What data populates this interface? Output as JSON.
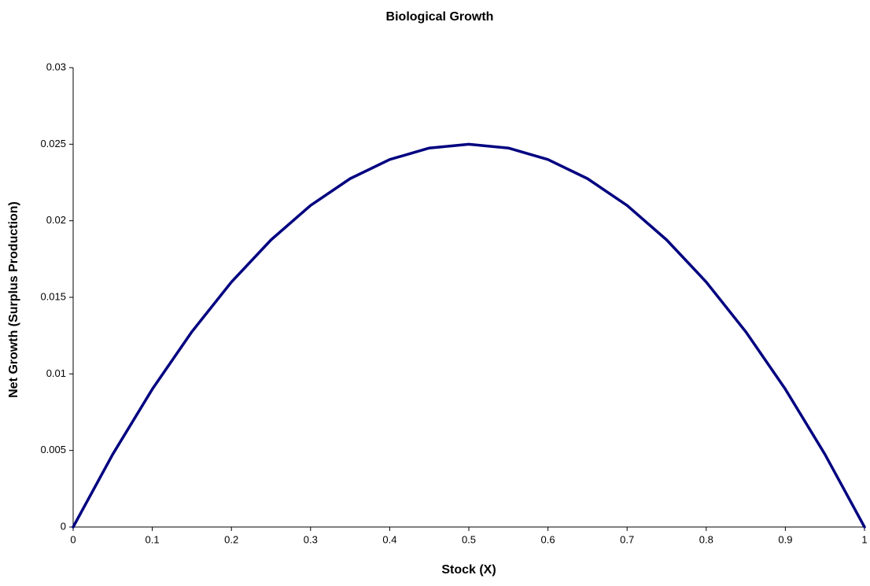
{
  "chart_data": {
    "type": "line",
    "title": "Biological Growth",
    "x_label": "Stock (X)",
    "y_label": "Net Growth (Surplus Production)",
    "x": [
      0,
      0.05,
      0.1,
      0.15,
      0.2,
      0.25,
      0.3,
      0.35,
      0.4,
      0.45,
      0.5,
      0.55,
      0.6,
      0.65,
      0.7,
      0.75,
      0.8,
      0.85,
      0.9,
      0.95,
      1
    ],
    "values": [
      0,
      0.00475,
      0.009,
      0.01275,
      0.016,
      0.01875,
      0.021,
      0.02275,
      0.024,
      0.02475,
      0.025,
      0.02475,
      0.024,
      0.02275,
      0.021,
      0.01875,
      0.016,
      0.01275,
      0.009,
      0.00475,
      0
    ],
    "color": "#000080",
    "xlim": [
      0,
      1
    ],
    "xticks": [
      0,
      0.1,
      0.2,
      0.3,
      0.4,
      0.5,
      0.6,
      0.7,
      0.8,
      0.9,
      1
    ],
    "ylim": [
      0,
      0.03
    ],
    "yticks": [
      0,
      0.005,
      0.01,
      0.015,
      0.02,
      0.025,
      0.03
    ],
    "grid": false
  }
}
